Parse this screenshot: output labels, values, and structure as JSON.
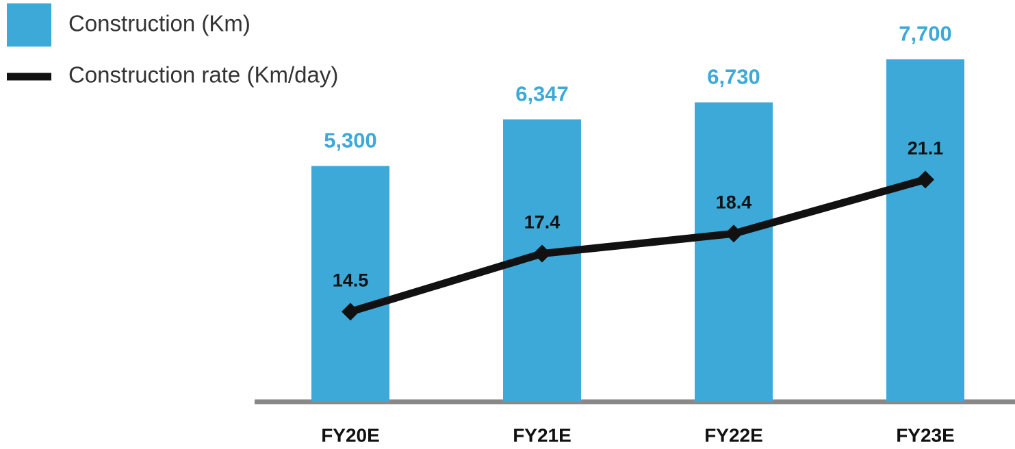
{
  "chart_data": {
    "type": "bar-line",
    "categories": [
      "FY20E",
      "FY21E",
      "FY22E",
      "FY23E"
    ],
    "series": [
      {
        "name": "Construction (Km)",
        "type": "bar",
        "color": "#3ca9d8",
        "values": [
          5300,
          6347,
          6730,
          7700
        ],
        "value_labels": [
          "5,300",
          "6,347",
          "6,730",
          "7,700"
        ]
      },
      {
        "name": "Construction rate (Km/day)",
        "type": "line",
        "color": "#111111",
        "axis": "y2",
        "values": [
          14.5,
          17.4,
          18.4,
          21.1
        ]
      }
    ],
    "ylim": [
      0,
      9000
    ],
    "y2lim": [
      10,
      30
    ],
    "legend": "top-left"
  }
}
